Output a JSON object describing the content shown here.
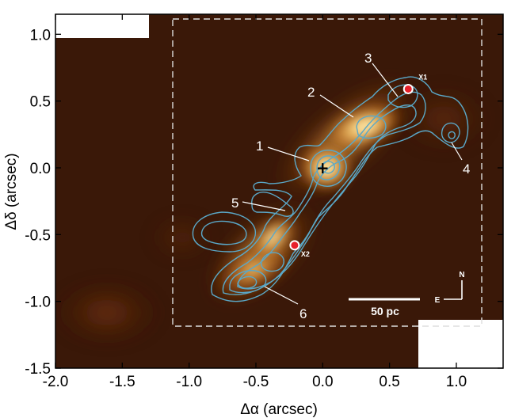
{
  "colors": {
    "background": "#3a1808",
    "contour": "#5aa8c8",
    "marker": "#e8202a",
    "dashed_box": "#dddddd"
  },
  "axes": {
    "xlabel": "Δα (arcsec)",
    "ylabel": "Δδ (arcsec)",
    "xlim": [
      -2.0,
      1.35
    ],
    "ylim": [
      -1.5,
      1.15
    ],
    "x_ticks": [
      "-2.0",
      "-1.5",
      "-1.0",
      "-0.5",
      "0.0",
      "0.5",
      "1.0"
    ],
    "y_ticks": [
      "1.0",
      "0.5",
      "0.0",
      "-0.5",
      "-1.0",
      "-1.5"
    ]
  },
  "features": [
    {
      "label": "1"
    },
    {
      "label": "2"
    },
    {
      "label": "3"
    },
    {
      "label": "4"
    },
    {
      "label": "5"
    },
    {
      "label": "6"
    }
  ],
  "markers": [
    {
      "label": "X1",
      "x": 0.64,
      "y": 0.59
    },
    {
      "label": "X2",
      "x": -0.21,
      "y": -0.58
    }
  ],
  "nucleus_marker": {
    "symbol": "+",
    "x": 0.0,
    "y": 0.0
  },
  "scale_bar": {
    "label": "50 pc"
  },
  "compass": {
    "north": "N",
    "east": "E"
  }
}
